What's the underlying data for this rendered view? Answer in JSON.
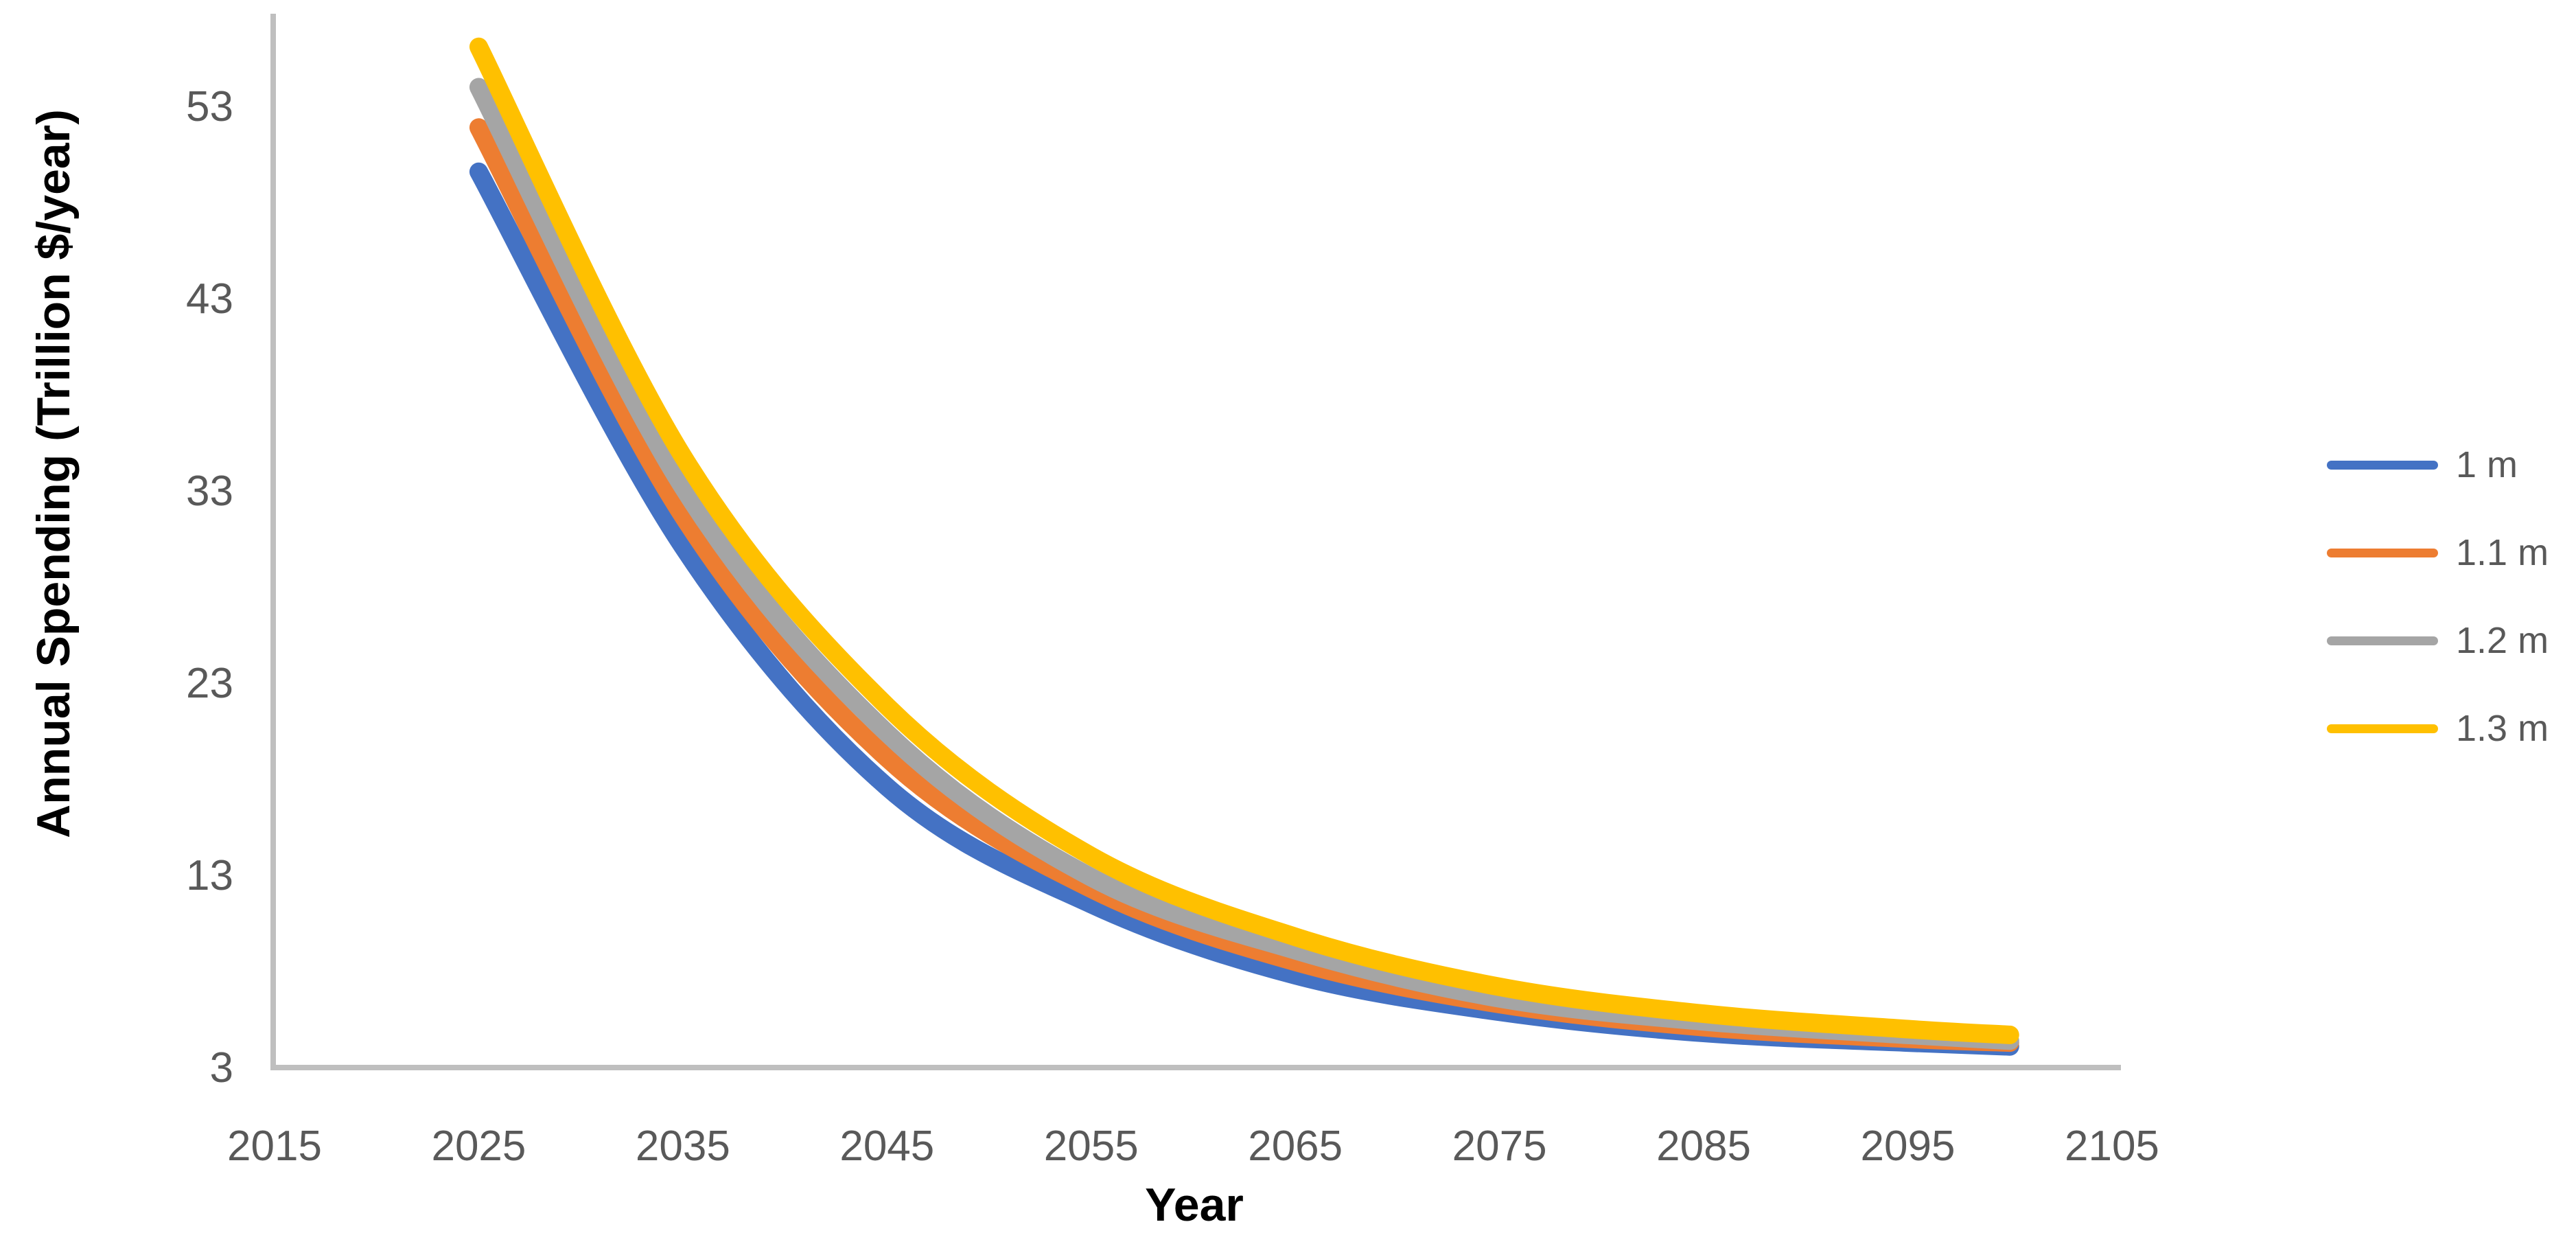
{
  "page": {
    "background": "#FFFFFF"
  },
  "chart_data": {
    "type": "line",
    "title": "",
    "xlabel": "Year",
    "ylabel": "Annual Spending (Trillion $/year)",
    "x_ticks": [
      2015,
      2025,
      2035,
      2045,
      2055,
      2065,
      2075,
      2085,
      2095,
      2105
    ],
    "x_tick_labels": [
      "2015",
      "2025",
      "2035",
      "2045",
      "2055",
      "2065",
      "2075",
      "2085",
      "2095",
      "2105"
    ],
    "y_ticks": [
      3,
      13,
      23,
      33,
      43,
      53
    ],
    "y_tick_labels": [
      "3",
      "13",
      "23",
      "33",
      "43",
      "53"
    ],
    "xlim": [
      2015,
      2106
    ],
    "ylim": [
      3,
      57.8
    ],
    "grid": false,
    "legend_position": "right",
    "axis_color": "#BFBFBF",
    "tick_label_color": "#595959",
    "title_color": "#000000",
    "x": [
      2025,
      2035,
      2045,
      2055,
      2065,
      2075,
      2085,
      2095,
      2100
    ],
    "series": [
      {
        "name": "1 m",
        "color": "#4472C4",
        "values": [
          49.6,
          30.1,
          17.6,
          11.5,
          7.8,
          5.9,
          4.8,
          4.3,
          4.1
        ]
      },
      {
        "name": "1.1 m",
        "color": "#ED7D31",
        "values": [
          51.9,
          31.7,
          19.1,
          12.3,
          8.5,
          6.3,
          5.1,
          4.5,
          4.3
        ]
      },
      {
        "name": "1.2 m",
        "color": "#A5A5A5",
        "values": [
          54.0,
          33.2,
          20.4,
          12.9,
          9.1,
          6.6,
          5.4,
          4.7,
          4.4
        ]
      },
      {
        "name": "1.3 m",
        "color": "#FFC000",
        "values": [
          56.1,
          34.8,
          21.8,
          14.0,
          9.8,
          7.2,
          5.8,
          5.0,
          4.7
        ]
      }
    ]
  }
}
